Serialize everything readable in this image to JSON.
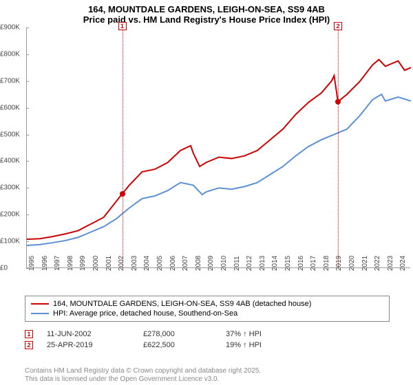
{
  "title_line1": "164, MOUNTDALE GARDENS, LEIGH-ON-SEA, SS9 4AB",
  "title_line2": "Price paid vs. HM Land Registry's House Price Index (HPI)",
  "chart": {
    "type": "line",
    "y_axis": {
      "min": 0,
      "max": 900000,
      "tick_step": 100000,
      "labels": [
        "£0",
        "£100K",
        "£200K",
        "£300K",
        "£400K",
        "£500K",
        "£600K",
        "£700K",
        "£800K",
        "£900K"
      ],
      "label_fontsize": 10,
      "grid": false
    },
    "x_axis": {
      "min": 1995,
      "max": 2025,
      "labels": [
        "1995",
        "1996",
        "1997",
        "1998",
        "1999",
        "2000",
        "2001",
        "2002",
        "2003",
        "2004",
        "2005",
        "2006",
        "2007",
        "2008",
        "2009",
        "2010",
        "2011",
        "2012",
        "2013",
        "2014",
        "2015",
        "2016",
        "2017",
        "2018",
        "2019",
        "2020",
        "2021",
        "2022",
        "2023",
        "2024"
      ],
      "label_fontsize": 10,
      "rotation": -90
    },
    "series": [
      {
        "id": "subject",
        "label": "164, MOUNTDALE GARDENS, LEIGH-ON-SEA, SS9 4AB (detached house)",
        "color": "#cc0000",
        "line_width": 2,
        "points": [
          [
            1995,
            108000
          ],
          [
            1996,
            110000
          ],
          [
            1997,
            118000
          ],
          [
            1998,
            128000
          ],
          [
            1999,
            140000
          ],
          [
            2000,
            165000
          ],
          [
            2001,
            190000
          ],
          [
            2002.45,
            278000
          ],
          [
            2003,
            310000
          ],
          [
            2004,
            360000
          ],
          [
            2005,
            370000
          ],
          [
            2006,
            395000
          ],
          [
            2007,
            440000
          ],
          [
            2007.8,
            458000
          ],
          [
            2008,
            430000
          ],
          [
            2008.5,
            380000
          ],
          [
            2009,
            395000
          ],
          [
            2010,
            415000
          ],
          [
            2011,
            410000
          ],
          [
            2012,
            420000
          ],
          [
            2013,
            440000
          ],
          [
            2014,
            480000
          ],
          [
            2015,
            520000
          ],
          [
            2016,
            575000
          ],
          [
            2017,
            620000
          ],
          [
            2018,
            655000
          ],
          [
            2018.8,
            700000
          ],
          [
            2019,
            720000
          ],
          [
            2019.3,
            622500
          ],
          [
            2020,
            650000
          ],
          [
            2021,
            698000
          ],
          [
            2022,
            760000
          ],
          [
            2022.5,
            780000
          ],
          [
            2023,
            755000
          ],
          [
            2024,
            775000
          ],
          [
            2024.5,
            740000
          ],
          [
            2025,
            750000
          ]
        ]
      },
      {
        "id": "hpi",
        "label": "HPI: Average price, detached house, Southend-on-Sea",
        "color": "#5b8fd6",
        "line_width": 2,
        "points": [
          [
            1995,
            85000
          ],
          [
            1996,
            88000
          ],
          [
            1997,
            95000
          ],
          [
            1998,
            103000
          ],
          [
            1999,
            115000
          ],
          [
            2000,
            135000
          ],
          [
            2001,
            155000
          ],
          [
            2002,
            185000
          ],
          [
            2003,
            225000
          ],
          [
            2004,
            260000
          ],
          [
            2005,
            270000
          ],
          [
            2006,
            290000
          ],
          [
            2007,
            320000
          ],
          [
            2008,
            310000
          ],
          [
            2008.7,
            275000
          ],
          [
            2009,
            285000
          ],
          [
            2010,
            300000
          ],
          [
            2011,
            295000
          ],
          [
            2012,
            305000
          ],
          [
            2013,
            320000
          ],
          [
            2014,
            350000
          ],
          [
            2015,
            380000
          ],
          [
            2016,
            420000
          ],
          [
            2017,
            455000
          ],
          [
            2018,
            480000
          ],
          [
            2019,
            500000
          ],
          [
            2020,
            520000
          ],
          [
            2021,
            570000
          ],
          [
            2022,
            630000
          ],
          [
            2022.7,
            650000
          ],
          [
            2023,
            625000
          ],
          [
            2024,
            640000
          ],
          [
            2025,
            625000
          ]
        ]
      }
    ],
    "sale_markers": [
      {
        "n": "1",
        "year": 2002.45,
        "value": 278000
      },
      {
        "n": "2",
        "year": 2019.3,
        "value": 622500
      }
    ],
    "marker_top_offset": -8,
    "background_color": "#ffffff"
  },
  "legend": {
    "rows": [
      {
        "color": "#cc0000",
        "label": "164, MOUNTDALE GARDENS, LEIGH-ON-SEA, SS9 4AB (detached house)"
      },
      {
        "color": "#5b8fd6",
        "label": "HPI: Average price, detached house, Southend-on-Sea"
      }
    ]
  },
  "sales": [
    {
      "n": "1",
      "date": "11-JUN-2002",
      "price": "£278,000",
      "diff": "37% ↑ HPI"
    },
    {
      "n": "2",
      "date": "25-APR-2019",
      "price": "£622,500",
      "diff": "19% ↑ HPI"
    }
  ],
  "footer_line1": "Contains HM Land Registry data © Crown copyright and database right 2025.",
  "footer_line2": "This data is licensed under the Open Government Licence v3.0."
}
